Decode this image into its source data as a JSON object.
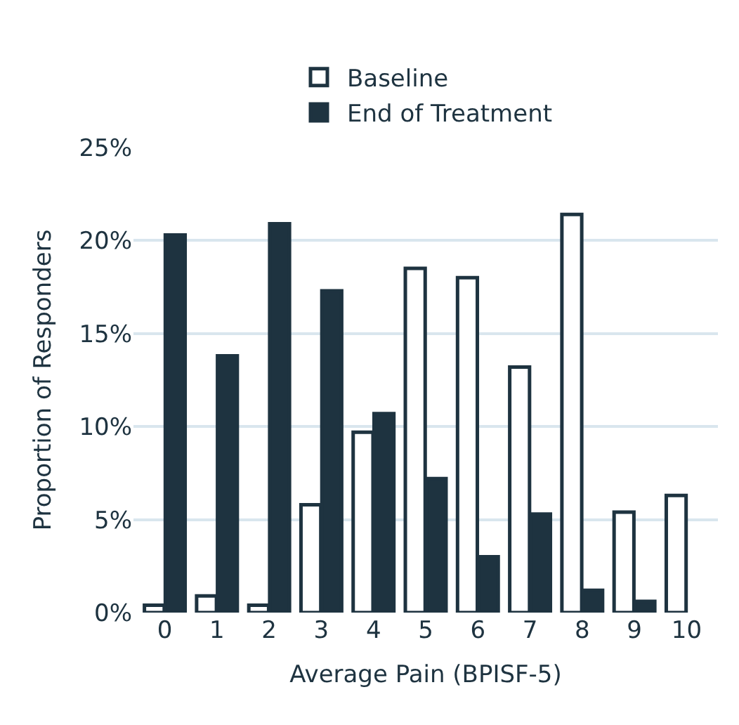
{
  "chart_data": {
    "type": "bar",
    "xlabel": "Average Pain (BPISF-5)",
    "ylabel": "Proportion of Responders",
    "categories": [
      "0",
      "1",
      "2",
      "3",
      "4",
      "5",
      "6",
      "7",
      "8",
      "9",
      "10"
    ],
    "series": [
      {
        "name": "Baseline",
        "color": "#ffffff",
        "values": [
          0.4,
          0.9,
          0.4,
          5.8,
          9.7,
          18.5,
          18.0,
          13.2,
          21.4,
          5.4,
          6.3
        ]
      },
      {
        "name": "End of Treatment",
        "color": "#1e3340",
        "values": [
          20.3,
          13.8,
          20.9,
          17.3,
          10.7,
          7.2,
          3.0,
          5.3,
          1.2,
          0.6,
          null
        ]
      }
    ],
    "ylim": [
      0,
      25
    ],
    "yticks": [
      {
        "value": 0,
        "label": "0%"
      },
      {
        "value": 5,
        "label": "5%"
      },
      {
        "value": 10,
        "label": "10%"
      },
      {
        "value": 15,
        "label": "15%"
      },
      {
        "value": 20,
        "label": "20%"
      },
      {
        "value": 25,
        "label": "25%"
      }
    ],
    "grid": "y",
    "legend": "top"
  }
}
